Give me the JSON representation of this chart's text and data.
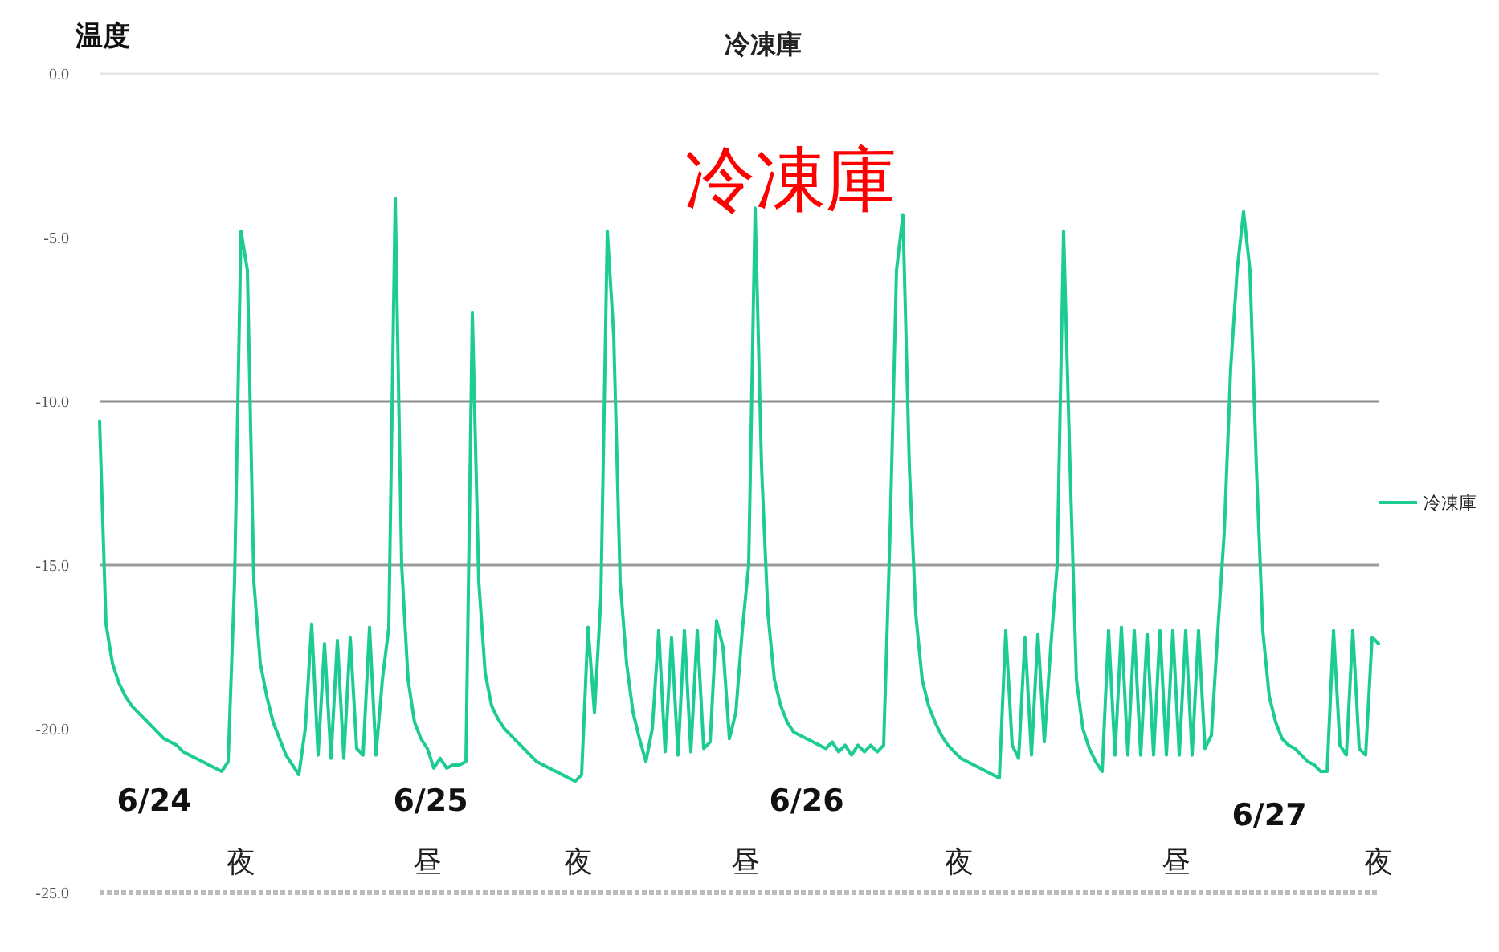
{
  "chart_data": {
    "type": "line",
    "title": "冷凍庫",
    "ylabel": "温度",
    "categories": [
      null,
      null,
      null,
      null,
      null,
      null,
      null,
      null,
      null,
      null,
      null,
      null,
      null,
      null,
      null,
      null,
      null,
      null,
      null,
      null,
      null,
      null,
      null,
      null,
      null,
      null,
      null,
      null,
      null,
      null,
      null,
      null,
      null,
      null,
      null,
      null,
      null,
      null,
      null,
      null,
      null,
      null,
      null,
      null,
      null,
      null,
      null,
      null,
      null,
      null,
      null,
      null,
      null,
      null,
      null,
      null,
      null,
      null,
      null,
      null,
      null,
      null,
      null,
      null,
      null,
      null,
      null,
      null,
      null,
      null,
      null,
      null,
      null,
      null,
      null,
      null,
      null,
      null,
      null,
      null,
      null,
      null,
      null,
      null,
      null,
      null,
      null,
      null,
      null,
      null,
      null,
      null,
      null,
      null,
      null,
      null,
      null,
      null,
      null,
      null,
      null,
      null,
      null,
      null,
      null,
      null,
      null,
      null,
      null,
      null,
      null,
      null,
      null,
      null,
      null,
      null,
      null,
      null,
      null,
      null,
      null,
      null,
      null,
      null,
      null,
      null,
      null,
      null,
      null,
      null,
      null,
      null,
      null,
      null,
      null,
      null,
      null,
      null,
      null,
      null,
      null,
      null,
      null,
      null,
      null,
      null,
      null,
      null,
      null,
      null,
      null,
      null,
      null,
      null,
      null,
      null,
      null,
      null,
      null,
      null,
      null,
      null,
      null,
      null,
      null,
      null,
      null,
      null,
      null,
      null,
      null,
      null,
      null,
      null,
      null,
      null,
      null,
      null,
      null,
      null,
      null,
      null,
      null,
      null,
      null,
      null,
      null,
      null,
      null,
      null,
      null,
      null,
      null,
      null,
      null,
      null,
      null,
      null,
      null,
      null
    ],
    "series": [
      {
        "name": "冷凍庫",
        "color": "#1dcc95",
        "values": [
          -10.6,
          -16.8,
          -18.0,
          -18.6,
          -19.0,
          -19.3,
          -19.5,
          -19.7,
          -19.9,
          -20.1,
          -20.3,
          -20.4,
          -20.5,
          -20.7,
          -20.8,
          -20.9,
          -21.0,
          -21.1,
          -21.2,
          -21.3,
          -21.0,
          -15.5,
          -4.8,
          -6.0,
          -15.5,
          -18.0,
          -19.0,
          -19.8,
          -20.3,
          -20.8,
          -21.1,
          -21.4,
          -20.0,
          -16.8,
          -20.8,
          -17.4,
          -20.9,
          -17.3,
          -20.9,
          -17.2,
          -20.6,
          -20.8,
          -16.9,
          -20.8,
          -18.5,
          -16.9,
          -3.8,
          -15.0,
          -18.5,
          -19.8,
          -20.3,
          -20.6,
          -21.2,
          -20.9,
          -21.2,
          -21.1,
          -21.1,
          -21.0,
          -7.3,
          -15.5,
          -18.3,
          -19.3,
          -19.7,
          -20.0,
          -20.2,
          -20.4,
          -20.6,
          -20.8,
          -21.0,
          -21.1,
          -21.2,
          -21.3,
          -21.4,
          -21.5,
          -21.6,
          -21.4,
          -16.9,
          -19.5,
          -16.0,
          -4.8,
          -8.0,
          -15.5,
          -18.0,
          -19.5,
          -20.3,
          -21.0,
          -20.0,
          -17.0,
          -20.7,
          -17.2,
          -20.8,
          -17.0,
          -20.7,
          -17.0,
          -20.6,
          -20.4,
          -16.7,
          -17.5,
          -20.3,
          -19.5,
          -17.0,
          -15.0,
          -4.1,
          -12.0,
          -16.5,
          -18.5,
          -19.3,
          -19.8,
          -20.1,
          -20.2,
          -20.3,
          -20.4,
          -20.5,
          -20.6,
          -20.4,
          -20.7,
          -20.5,
          -20.8,
          -20.5,
          -20.7,
          -20.5,
          -20.7,
          -20.5,
          -14.0,
          -6.0,
          -4.3,
          -12.0,
          -16.5,
          -18.5,
          -19.3,
          -19.8,
          -20.2,
          -20.5,
          -20.7,
          -20.9,
          -21.0,
          -21.1,
          -21.2,
          -21.3,
          -21.4,
          -21.5,
          -17.0,
          -20.5,
          -20.9,
          -17.2,
          -20.8,
          -17.1,
          -20.4,
          -17.5,
          -15.0,
          -4.8,
          -12.0,
          -18.5,
          -20.0,
          -20.6,
          -21.0,
          -21.3,
          -17.0,
          -20.8,
          -16.9,
          -20.8,
          -17.0,
          -20.8,
          -17.1,
          -20.8,
          -17.0,
          -20.8,
          -17.0,
          -20.8,
          -17.0,
          -20.8,
          -17.0,
          -20.6,
          -20.2,
          -17.0,
          -14.0,
          -9.0,
          -6.0,
          -4.2,
          -6.0,
          -12.0,
          -17.0,
          -19.0,
          -19.8,
          -20.3,
          -20.5,
          -20.6,
          -20.8,
          -21.0,
          -21.1,
          -21.3,
          -21.3,
          -17.0,
          -20.5,
          -20.8,
          -17.0,
          -20.6,
          -20.8,
          -17.2,
          -17.4
        ]
      }
    ],
    "ylim": [
      -25,
      0
    ],
    "yticks": [
      {
        "value": 0,
        "label": "0.0"
      },
      {
        "value": -5,
        "label": "-5.0"
      },
      {
        "value": -10,
        "label": "-10.0"
      },
      {
        "value": -15,
        "label": "-15.0"
      },
      {
        "value": -20,
        "label": "-20.0"
      },
      {
        "value": -25,
        "label": "-25.0"
      }
    ],
    "ref_lines": [
      {
        "axis": "y",
        "value": 0,
        "color": "#e6e6e6"
      },
      {
        "axis": "y",
        "value": -10,
        "color": "#8c8c8c"
      },
      {
        "axis": "y",
        "value": -15,
        "color": "#9c9c9c"
      }
    ],
    "legend": "right",
    "marker": "none",
    "line_style": "solid",
    "annotations": [
      "冷凍庫",
      "6/24",
      "6/25",
      "6/26",
      "6/27",
      "夜",
      "昼",
      "夜",
      "昼",
      "夜",
      "昼",
      "夜"
    ]
  }
}
